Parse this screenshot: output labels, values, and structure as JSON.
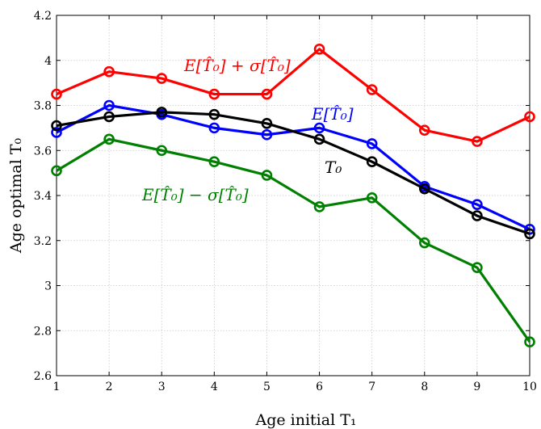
{
  "chart_data": {
    "type": "line",
    "title": "",
    "xlabel": "Age initial T₁",
    "ylabel": "Age optimal T₀",
    "xlim": [
      1,
      10
    ],
    "ylim": [
      2.6,
      4.2
    ],
    "x_ticks": [
      "1",
      "2",
      "3",
      "4",
      "5",
      "6",
      "7",
      "8",
      "9",
      "10"
    ],
    "y_ticks": [
      "2.6",
      "2.8",
      "3",
      "3.2",
      "3.4",
      "3.6",
      "3.8",
      "4",
      "4.2"
    ],
    "grid": true,
    "x": [
      1,
      2,
      3,
      4,
      5,
      6,
      7,
      8,
      9,
      10
    ],
    "series": [
      {
        "name": "E[T̂₀] + σ[T̂₀]",
        "color": "#ff0000",
        "values": [
          3.85,
          3.95,
          3.92,
          3.85,
          3.85,
          4.05,
          3.87,
          3.69,
          3.64,
          3.75
        ]
      },
      {
        "name": "E[T̂₀] − σ[T̂₀]",
        "color": "#008000",
        "values": [
          3.51,
          3.65,
          3.6,
          3.55,
          3.49,
          3.35,
          3.39,
          3.19,
          3.08,
          2.75
        ]
      },
      {
        "name": "E[T̂₀]",
        "color": "#0000ff",
        "values": [
          3.68,
          3.8,
          3.76,
          3.7,
          3.67,
          3.7,
          3.63,
          3.44,
          3.36,
          3.25
        ]
      },
      {
        "name": "T₀",
        "color": "#000000",
        "values": [
          3.71,
          3.75,
          3.77,
          3.76,
          3.72,
          3.65,
          3.55,
          3.43,
          3.31,
          3.23
        ]
      }
    ]
  }
}
